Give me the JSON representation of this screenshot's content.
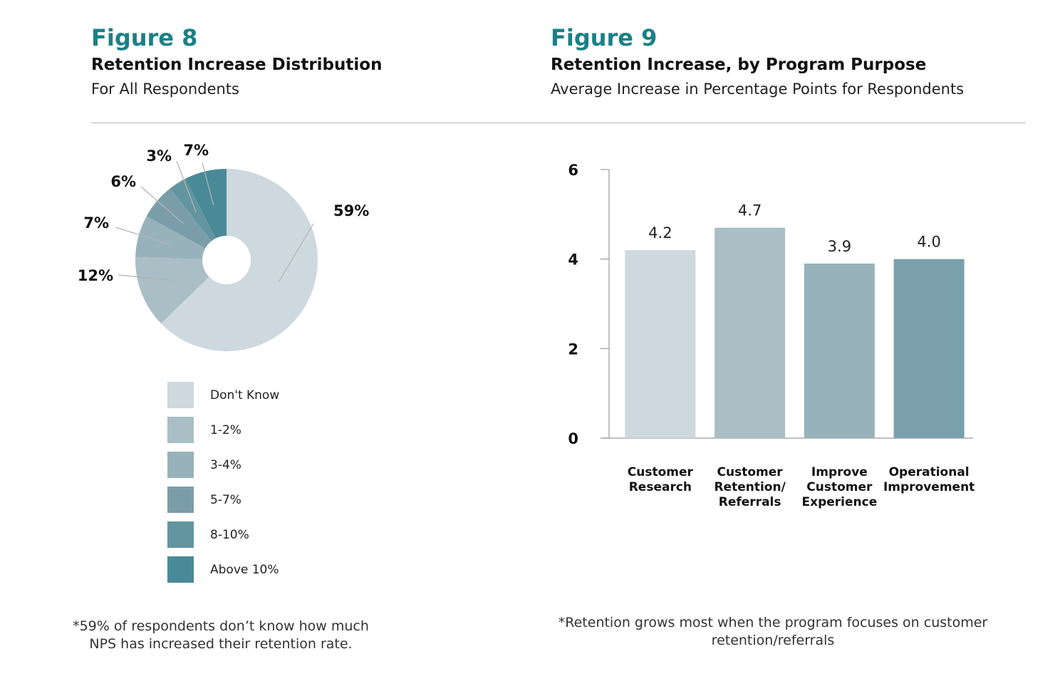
{
  "figure8": {
    "label": "Figure 8",
    "title": "Retention Increase Distribution",
    "subtitle": "For All Respondents",
    "footnote": "*59% of respondents don’t know how much NPS has increased their retention rate."
  },
  "figure9": {
    "label": "Figure 9",
    "title": "Retention Increase, by Program Purpose",
    "subtitle": "Average Increase in Percentage Points for Respondents",
    "footnote": "*Retention grows most when the program focuses on customer retention/referrals"
  },
  "chart_data": [
    {
      "type": "pie",
      "donut": true,
      "title": "Retention Increase Distribution",
      "subtitle": "For All Respondents",
      "legend_position": "bottom",
      "slices": [
        {
          "label": "Don't Know",
          "value": 59,
          "display": "59%",
          "color": "#cdd9df"
        },
        {
          "label": "1-2%",
          "value": 12,
          "display": "12%",
          "color": "#aabec6"
        },
        {
          "label": "3-4%",
          "value": 7,
          "display": "7%",
          "color": "#97b2ba"
        },
        {
          "label": "5-7%",
          "value": 6,
          "display": "6%",
          "color": "#7a9ea9"
        },
        {
          "label": "8-10%",
          "value": 3,
          "display": "3%",
          "color": "#62959f"
        },
        {
          "label": "Above 10%",
          "value": 7,
          "display": "7%",
          "color": "#4a8a96"
        }
      ]
    },
    {
      "type": "bar",
      "title": "Retention Increase, by Program Purpose",
      "subtitle": "Average Increase in Percentage Points for Respondents",
      "categories": [
        [
          "Customer",
          "Research"
        ],
        [
          "Customer",
          "Retention/",
          "Referrals"
        ],
        [
          "Improve",
          "Customer",
          "Experience"
        ],
        [
          "Operational",
          "Improvement"
        ]
      ],
      "values": [
        4.2,
        4.7,
        3.9,
        4.0
      ],
      "value_labels": [
        "4.2",
        "4.7",
        "3.9",
        "4.0"
      ],
      "colors": [
        "#cdd9df",
        "#aabec6",
        "#97b2ba",
        "#7aa0ac"
      ],
      "ylim": [
        0,
        6
      ],
      "yticks": [
        0,
        2,
        4,
        6
      ],
      "grid": false
    }
  ]
}
